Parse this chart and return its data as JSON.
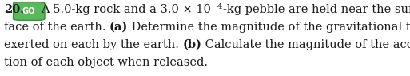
{
  "problem_number": "20.",
  "badge_text": "GO",
  "badge_bg_color": "#5cb85c",
  "badge_text_color": "#ffffff",
  "badge_border_color": "#3d8b3d",
  "line1_before": "A 5.0-kg rock and a 3.0 × 10",
  "line1_sup": "−4",
  "line1_after": "-kg pebble are held near the sur-",
  "line2_before": "face of the earth. ",
  "line2_bold": "(a)",
  "line2_after": " Determine the magnitude of the gravitational force",
  "line3_before": "exerted on each by the earth. ",
  "line3_bold": "(b)",
  "line3_after": " Calculate the magnitude of the accelera-",
  "line4": "tion of each object when released.",
  "text_color": "#1a1a1a",
  "bg_color": "#ffffff",
  "font_size": 10.5,
  "fig_width": 5.13,
  "fig_height": 0.95,
  "dpi": 100
}
